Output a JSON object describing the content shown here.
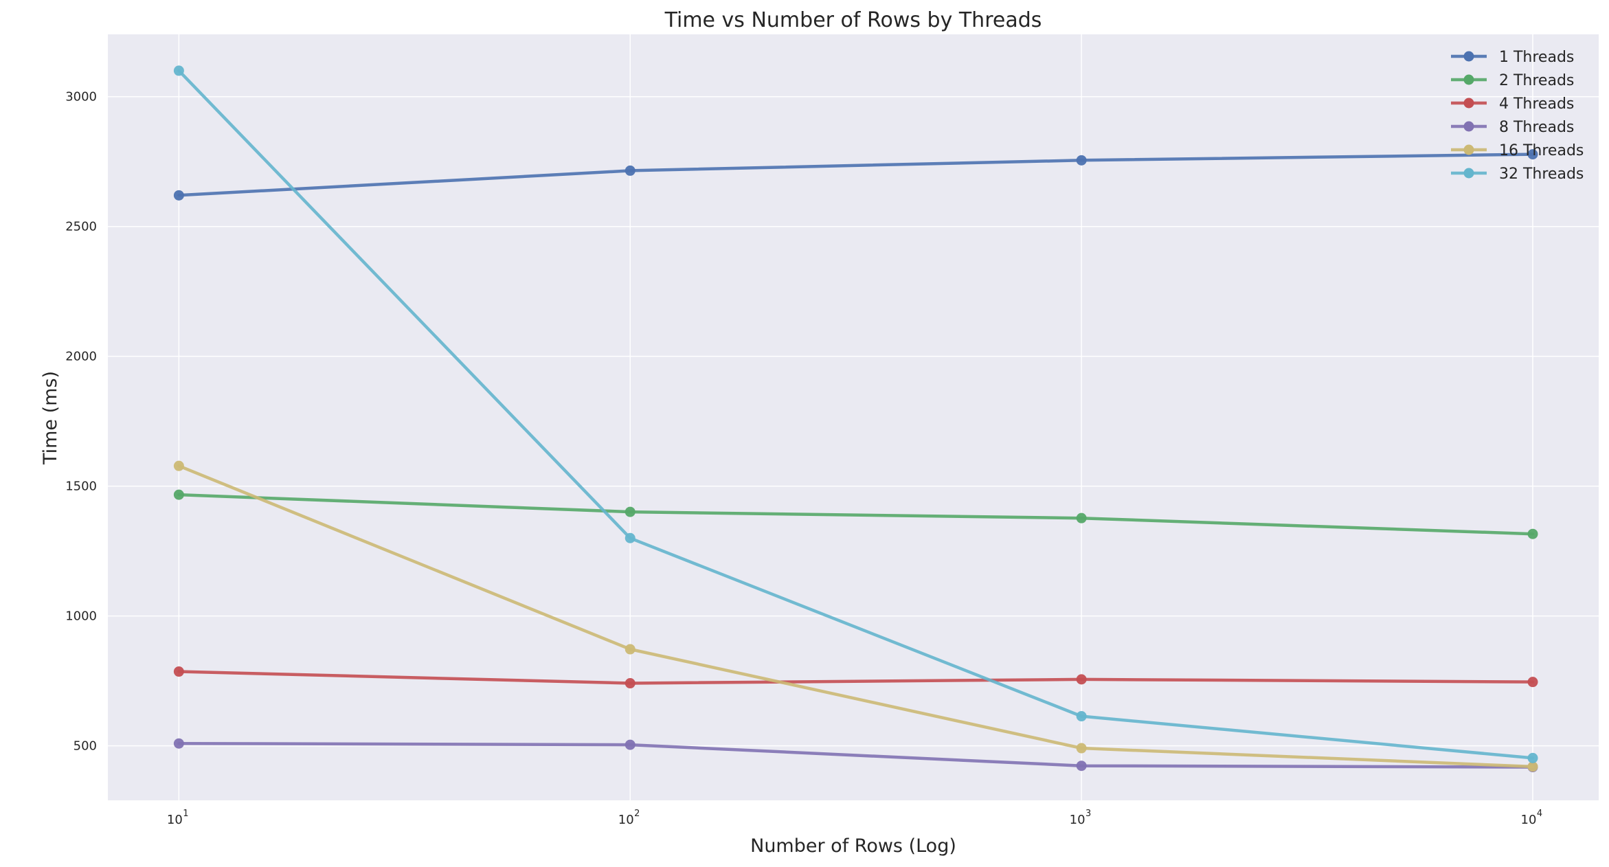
{
  "chart_data": {
    "type": "line",
    "title": "Time vs Number of Rows by Threads",
    "xlabel": "Number of Rows (Log)",
    "ylabel": "Time (ms)",
    "xscale": "log",
    "x": [
      10,
      100,
      1000,
      10000
    ],
    "x_tick_labels": [
      {
        "base": "10",
        "exp": "1"
      },
      {
        "base": "10",
        "exp": "2"
      },
      {
        "base": "10",
        "exp": "3"
      },
      {
        "base": "10",
        "exp": "4"
      }
    ],
    "y_ticks": [
      500,
      1000,
      1500,
      2000,
      2500,
      3000
    ],
    "ylim": [
      290,
      3240
    ],
    "xlim": [
      6.96,
      14000
    ],
    "grid": true,
    "legend_position": "top-right",
    "background_color": "#EAEAF2",
    "grid_color": "#FFFFFF",
    "series": [
      {
        "name": "1 Threads",
        "color": "#4C72B0",
        "values": [
          2620,
          2715,
          2755,
          2778
        ]
      },
      {
        "name": "2 Threads",
        "color": "#55A868",
        "values": [
          1467,
          1401,
          1377,
          1316
        ]
      },
      {
        "name": "4 Threads",
        "color": "#C44E52",
        "values": [
          786,
          741,
          756,
          746
        ]
      },
      {
        "name": "8 Threads",
        "color": "#8172B2",
        "values": [
          509,
          504,
          423,
          418
        ]
      },
      {
        "name": "16 Threads",
        "color": "#CCB974",
        "values": [
          1578,
          872,
          491,
          420
        ]
      },
      {
        "name": "32 Threads",
        "color": "#64B5CD",
        "values": [
          3100,
          1300,
          614,
          453
        ]
      }
    ]
  }
}
